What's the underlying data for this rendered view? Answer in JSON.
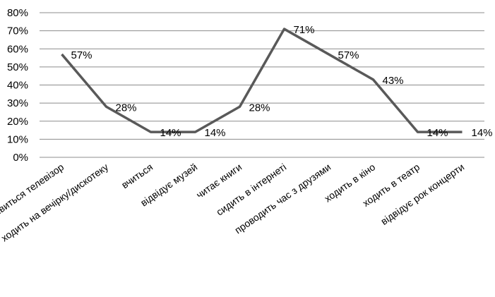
{
  "chart_data": {
    "type": "line",
    "categories": [
      "дивиться телевізор",
      "ходить на вечірку/дискотеку",
      "вчиться",
      "відвідує музей",
      "читає книги",
      "сидить в інтернеті",
      "проводить час з друзями",
      "ходить в кіно",
      "ходить в театр",
      "відвідує рок концерти"
    ],
    "series": [
      {
        "values": [
          57,
          28,
          14,
          14,
          28,
          71,
          57,
          43,
          14,
          14
        ],
        "data_labels": [
          "57%",
          "28%",
          "14%",
          "14%",
          "28%",
          "71%",
          "57%",
          "43%",
          "14%",
          "14%"
        ],
        "color": "#595959"
      }
    ],
    "yticks": [
      "0%",
      "10%",
      "20%",
      "30%",
      "40%",
      "50%",
      "60%",
      "70%",
      "80%"
    ],
    "ylim": [
      0,
      80
    ],
    "grid": true,
    "legend": "none"
  }
}
